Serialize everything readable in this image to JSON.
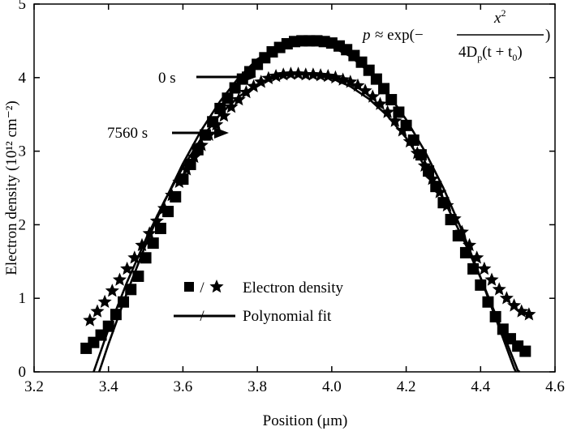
{
  "chart_data": {
    "type": "scatter",
    "xlabel": "Position (μm)",
    "ylabel": "Electron density (10¹² cm⁻²)",
    "xlim": [
      3.2,
      4.6
    ],
    "ylim": [
      0,
      5
    ],
    "xticks": [
      "3.2",
      "3.4",
      "3.6",
      "3.8",
      "4.0",
      "4.2",
      "4.4",
      "4.6"
    ],
    "yticks": [
      "0",
      "1",
      "2",
      "3",
      "4",
      "5"
    ],
    "grid": false,
    "legend": {
      "placement": "lower-left",
      "entries": [
        {
          "label": "Electron density",
          "markers": [
            "square",
            "star"
          ]
        },
        {
          "label": "Polynomial fit",
          "style": "line"
        }
      ]
    },
    "annotations": [
      {
        "text": "0 s",
        "target_x": 3.83,
        "target_y": 4.05
      },
      {
        "text": "7560 s",
        "target_x": 3.7,
        "target_y": 3.35
      }
    ],
    "formula": {
      "lhs": "p",
      "approx": "≈ exp(−",
      "numerator": "x",
      "numerator_sup": "2",
      "den_coef": "4D",
      "den_sub": "p",
      "den_paren": "(t + t",
      "den_sub2": "0",
      "den_close": ")",
      "close": ")"
    },
    "series": [
      {
        "name": "0 s",
        "marker": "square",
        "points": [
          [
            3.34,
            0.32
          ],
          [
            3.36,
            0.4
          ],
          [
            3.38,
            0.5
          ],
          [
            3.4,
            0.62
          ],
          [
            3.42,
            0.78
          ],
          [
            3.44,
            0.95
          ],
          [
            3.46,
            1.12
          ],
          [
            3.48,
            1.3
          ],
          [
            3.5,
            1.55
          ],
          [
            3.52,
            1.75
          ],
          [
            3.54,
            1.95
          ],
          [
            3.56,
            2.18
          ],
          [
            3.58,
            2.38
          ],
          [
            3.6,
            2.62
          ],
          [
            3.62,
            2.82
          ],
          [
            3.64,
            3.02
          ],
          [
            3.66,
            3.22
          ],
          [
            3.68,
            3.4
          ],
          [
            3.7,
            3.58
          ],
          [
            3.72,
            3.72
          ],
          [
            3.74,
            3.86
          ],
          [
            3.76,
            3.98
          ],
          [
            3.78,
            4.08
          ],
          [
            3.8,
            4.18
          ],
          [
            3.82,
            4.27
          ],
          [
            3.84,
            4.35
          ],
          [
            3.86,
            4.41
          ],
          [
            3.88,
            4.46
          ],
          [
            3.9,
            4.49
          ],
          [
            3.92,
            4.5
          ],
          [
            3.94,
            4.5
          ],
          [
            3.96,
            4.5
          ],
          [
            3.98,
            4.49
          ],
          [
            4.0,
            4.47
          ],
          [
            4.02,
            4.43
          ],
          [
            4.04,
            4.38
          ],
          [
            4.06,
            4.3
          ],
          [
            4.08,
            4.21
          ],
          [
            4.1,
            4.1
          ],
          [
            4.12,
            3.98
          ],
          [
            4.14,
            3.85
          ],
          [
            4.16,
            3.7
          ],
          [
            4.18,
            3.53
          ],
          [
            4.2,
            3.35
          ],
          [
            4.22,
            3.15
          ],
          [
            4.24,
            2.95
          ],
          [
            4.26,
            2.73
          ],
          [
            4.28,
            2.52
          ],
          [
            4.3,
            2.3
          ],
          [
            4.32,
            2.07
          ],
          [
            4.34,
            1.85
          ],
          [
            4.36,
            1.62
          ],
          [
            4.38,
            1.4
          ],
          [
            4.4,
            1.18
          ],
          [
            4.42,
            0.95
          ],
          [
            4.44,
            0.75
          ],
          [
            4.46,
            0.58
          ],
          [
            4.48,
            0.45
          ],
          [
            4.5,
            0.35
          ],
          [
            4.52,
            0.28
          ]
        ]
      },
      {
        "name": "7560 s",
        "marker": "star",
        "points": [
          [
            3.35,
            0.7
          ],
          [
            3.37,
            0.82
          ],
          [
            3.39,
            0.95
          ],
          [
            3.41,
            1.1
          ],
          [
            3.43,
            1.25
          ],
          [
            3.45,
            1.4
          ],
          [
            3.47,
            1.55
          ],
          [
            3.49,
            1.72
          ],
          [
            3.51,
            1.88
          ],
          [
            3.53,
            2.05
          ],
          [
            3.55,
            2.22
          ],
          [
            3.57,
            2.4
          ],
          [
            3.59,
            2.58
          ],
          [
            3.61,
            2.75
          ],
          [
            3.63,
            2.92
          ],
          [
            3.65,
            3.08
          ],
          [
            3.67,
            3.22
          ],
          [
            3.69,
            3.36
          ],
          [
            3.71,
            3.48
          ],
          [
            3.73,
            3.6
          ],
          [
            3.75,
            3.7
          ],
          [
            3.77,
            3.8
          ],
          [
            3.79,
            3.88
          ],
          [
            3.81,
            3.94
          ],
          [
            3.83,
            3.99
          ],
          [
            3.85,
            4.02
          ],
          [
            3.87,
            4.04
          ],
          [
            3.89,
            4.05
          ],
          [
            3.91,
            4.05
          ],
          [
            3.93,
            4.04
          ],
          [
            3.95,
            4.04
          ],
          [
            3.97,
            4.03
          ],
          [
            3.99,
            4.02
          ],
          [
            4.01,
            4.0
          ],
          [
            4.03,
            3.97
          ],
          [
            4.05,
            3.94
          ],
          [
            4.07,
            3.89
          ],
          [
            4.09,
            3.82
          ],
          [
            4.11,
            3.74
          ],
          [
            4.13,
            3.64
          ],
          [
            4.15,
            3.53
          ],
          [
            4.17,
            3.41
          ],
          [
            4.19,
            3.28
          ],
          [
            4.21,
            3.13
          ],
          [
            4.23,
            2.97
          ],
          [
            4.25,
            2.8
          ],
          [
            4.27,
            2.62
          ],
          [
            4.29,
            2.44
          ],
          [
            4.31,
            2.26
          ],
          [
            4.33,
            2.08
          ],
          [
            4.35,
            1.9
          ],
          [
            4.37,
            1.72
          ],
          [
            4.39,
            1.55
          ],
          [
            4.41,
            1.4
          ],
          [
            4.43,
            1.25
          ],
          [
            4.45,
            1.12
          ],
          [
            4.47,
            1.0
          ],
          [
            4.49,
            0.9
          ],
          [
            4.51,
            0.82
          ],
          [
            4.53,
            0.78
          ]
        ]
      },
      {
        "name": "fit 0 s",
        "marker": "line",
        "points": [
          [
            3.375,
            0.0
          ],
          [
            3.4,
            0.38
          ],
          [
            3.45,
            1.08
          ],
          [
            3.5,
            1.73
          ],
          [
            3.55,
            2.31
          ],
          [
            3.6,
            2.83
          ],
          [
            3.65,
            3.29
          ],
          [
            3.7,
            3.68
          ],
          [
            3.75,
            4.0
          ],
          [
            3.8,
            4.25
          ],
          [
            3.85,
            4.4
          ],
          [
            3.9,
            4.46
          ],
          [
            3.95,
            4.47
          ],
          [
            4.0,
            4.42
          ],
          [
            4.05,
            4.29
          ],
          [
            4.1,
            4.08
          ],
          [
            4.15,
            3.79
          ],
          [
            4.2,
            3.43
          ],
          [
            4.25,
            3.0
          ],
          [
            4.3,
            2.5
          ],
          [
            4.35,
            1.92
          ],
          [
            4.4,
            1.28
          ],
          [
            4.45,
            0.6
          ],
          [
            4.49,
            0.05
          ],
          [
            4.495,
            0.0
          ]
        ]
      },
      {
        "name": "fit 7560 s",
        "marker": "line",
        "points": [
          [
            3.36,
            0.0
          ],
          [
            3.4,
            0.58
          ],
          [
            3.45,
            1.22
          ],
          [
            3.5,
            1.8
          ],
          [
            3.55,
            2.32
          ],
          [
            3.6,
            2.78
          ],
          [
            3.65,
            3.18
          ],
          [
            3.7,
            3.5
          ],
          [
            3.75,
            3.74
          ],
          [
            3.8,
            3.91
          ],
          [
            3.85,
            4.01
          ],
          [
            3.9,
            4.05
          ],
          [
            3.95,
            4.04
          ],
          [
            4.0,
            3.99
          ],
          [
            4.05,
            3.88
          ],
          [
            4.1,
            3.71
          ],
          [
            4.15,
            3.48
          ],
          [
            4.2,
            3.18
          ],
          [
            4.25,
            2.8
          ],
          [
            4.3,
            2.35
          ],
          [
            4.35,
            1.84
          ],
          [
            4.4,
            1.28
          ],
          [
            4.45,
            0.66
          ],
          [
            4.5,
            0.02
          ],
          [
            4.505,
            0.0
          ]
        ]
      }
    ]
  }
}
